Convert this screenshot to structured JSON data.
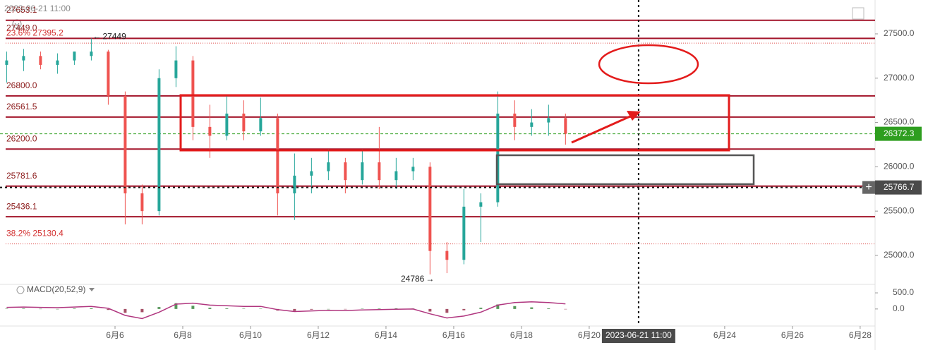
{
  "chart_data": {
    "type": "candlestick",
    "header_date": "2023-06-21 11:00",
    "x": [
      2.8,
      3.3,
      3.8,
      4.3,
      4.8,
      5.3,
      5.8,
      6.3,
      6.8,
      7.3,
      7.8,
      8.3,
      8.8,
      9.3,
      9.8,
      10.3,
      10.8,
      11.3,
      11.8,
      12.3,
      12.8,
      13.3,
      13.8,
      14.3,
      14.8,
      15.3,
      15.8,
      16.3,
      16.8,
      17.3,
      17.8,
      18.3,
      18.8,
      19.3
    ],
    "open": [
      27150,
      27200,
      27250,
      27150,
      27200,
      27250,
      27300,
      26800,
      25700,
      25500,
      27000,
      27200,
      26450,
      26350,
      26600,
      26400,
      26550,
      25700,
      25900,
      25950,
      26050,
      25850,
      26050,
      25850,
      25950,
      26000,
      25050,
      24950,
      25550,
      25600,
      26600,
      26450,
      26500,
      26550
    ],
    "high": [
      27300,
      27330,
      27300,
      27280,
      27300,
      27449,
      27320,
      26850,
      25800,
      27100,
      27360,
      27250,
      26700,
      26800,
      26750,
      26780,
      26600,
      26150,
      26100,
      26200,
      26100,
      26200,
      26450,
      26100,
      26100,
      26050,
      25150,
      25750,
      25700,
      26850,
      26750,
      26650,
      26700,
      26600
    ],
    "low": [
      26950,
      27080,
      27100,
      27050,
      27150,
      27200,
      26700,
      25350,
      25350,
      25450,
      26900,
      26300,
      26100,
      26300,
      26300,
      26350,
      25450,
      25400,
      25700,
      25850,
      25700,
      25800,
      25750,
      25750,
      25850,
      24786,
      24800,
      24900,
      25150,
      25550,
      26300,
      26350,
      26350,
      26250
    ],
    "close": [
      27200,
      27250,
      27150,
      27200,
      27300,
      27300,
      26800,
      25700,
      25500,
      27000,
      27200,
      26450,
      26350,
      26600,
      26400,
      26550,
      25700,
      25900,
      25950,
      26050,
      25850,
      26050,
      25850,
      25950,
      26000,
      25050,
      24950,
      25550,
      25600,
      26600,
      26450,
      26500,
      26550,
      26372.3
    ],
    "up_color": "#26a69a",
    "down_color": "#ef5350",
    "xlim": [
      2.604,
      28.44
    ],
    "xticks": [
      {
        "value": 6,
        "label": "6月6"
      },
      {
        "value": 8,
        "label": "6月8"
      },
      {
        "value": 10,
        "label": "6月10"
      },
      {
        "value": 12,
        "label": "6月12"
      },
      {
        "value": 14,
        "label": "6月14"
      },
      {
        "value": 16,
        "label": "6月16"
      },
      {
        "value": 18,
        "label": "6月18"
      },
      {
        "value": 20,
        "label": "6月20"
      },
      {
        "value": 24,
        "label": "6月24"
      },
      {
        "value": 26,
        "label": "6月26"
      },
      {
        "value": 28,
        "label": "6月28"
      }
    ],
    "ylim": [
      24697,
      27882
    ],
    "yticks": [
      {
        "value": 25000,
        "label": "25000.0"
      },
      {
        "value": 25500,
        "label": "25500.0"
      },
      {
        "value": 26000,
        "label": "26000.0"
      },
      {
        "value": 26500,
        "label": "26500.0"
      },
      {
        "value": 27000,
        "label": "27000.0"
      },
      {
        "value": 27500,
        "label": "27500.0"
      }
    ],
    "levels": [
      {
        "value": 27653.1,
        "label": "27653.1",
        "style": "solid"
      },
      {
        "value": 27449.0,
        "label": "27449.0",
        "style": "solid"
      },
      {
        "value": 27395.2,
        "label": "23.6% 27395.2",
        "style": "dotted"
      },
      {
        "value": 26800.0,
        "label": "26800.0",
        "style": "solid"
      },
      {
        "value": 26561.5,
        "label": "26561.5",
        "style": "solid"
      },
      {
        "value": 26200.0,
        "label": "26200.0",
        "style": "solid"
      },
      {
        "value": 25781.6,
        "label": "25781.6",
        "style": "solid"
      },
      {
        "value": 25436.1,
        "label": "25436.1",
        "style": "solid"
      },
      {
        "value": 25130.4,
        "label": "38.2% 25130.4",
        "style": "dotted"
      }
    ],
    "last_price": 26372.3,
    "last_price_color": "#2e9e1f",
    "crosshair": {
      "x": 21.458,
      "y": 25766.7,
      "label": "2023-06-21 11:00"
    },
    "annotations": [
      {
        "x": 5.3,
        "value": 27449,
        "label": "27449"
      },
      {
        "x": 15.3,
        "value": 24786,
        "label": "24786"
      }
    ],
    "macd": {
      "title": "MACD(20,52,9)",
      "ylim": [
        -310,
        720
      ],
      "yticks": [
        {
          "value": 500,
          "label": "500.0"
        },
        {
          "value": 0,
          "label": "0.0"
        }
      ],
      "line": [
        50,
        60,
        50,
        40,
        60,
        80,
        20,
        -200,
        -300,
        -100,
        150,
        180,
        120,
        100,
        80,
        80,
        -20,
        -80,
        -60,
        -40,
        -50,
        -30,
        -20,
        -10,
        0,
        -150,
        -280,
        -220,
        -100,
        120,
        200,
        220,
        200,
        160
      ],
      "histogram": [
        10,
        15,
        5,
        0,
        15,
        25,
        -30,
        -120,
        -100,
        60,
        180,
        100,
        40,
        20,
        10,
        10,
        -50,
        -60,
        -20,
        0,
        -10,
        10,
        15,
        20,
        15,
        -80,
        -120,
        -40,
        40,
        140,
        90,
        50,
        20,
        -5
      ]
    }
  }
}
